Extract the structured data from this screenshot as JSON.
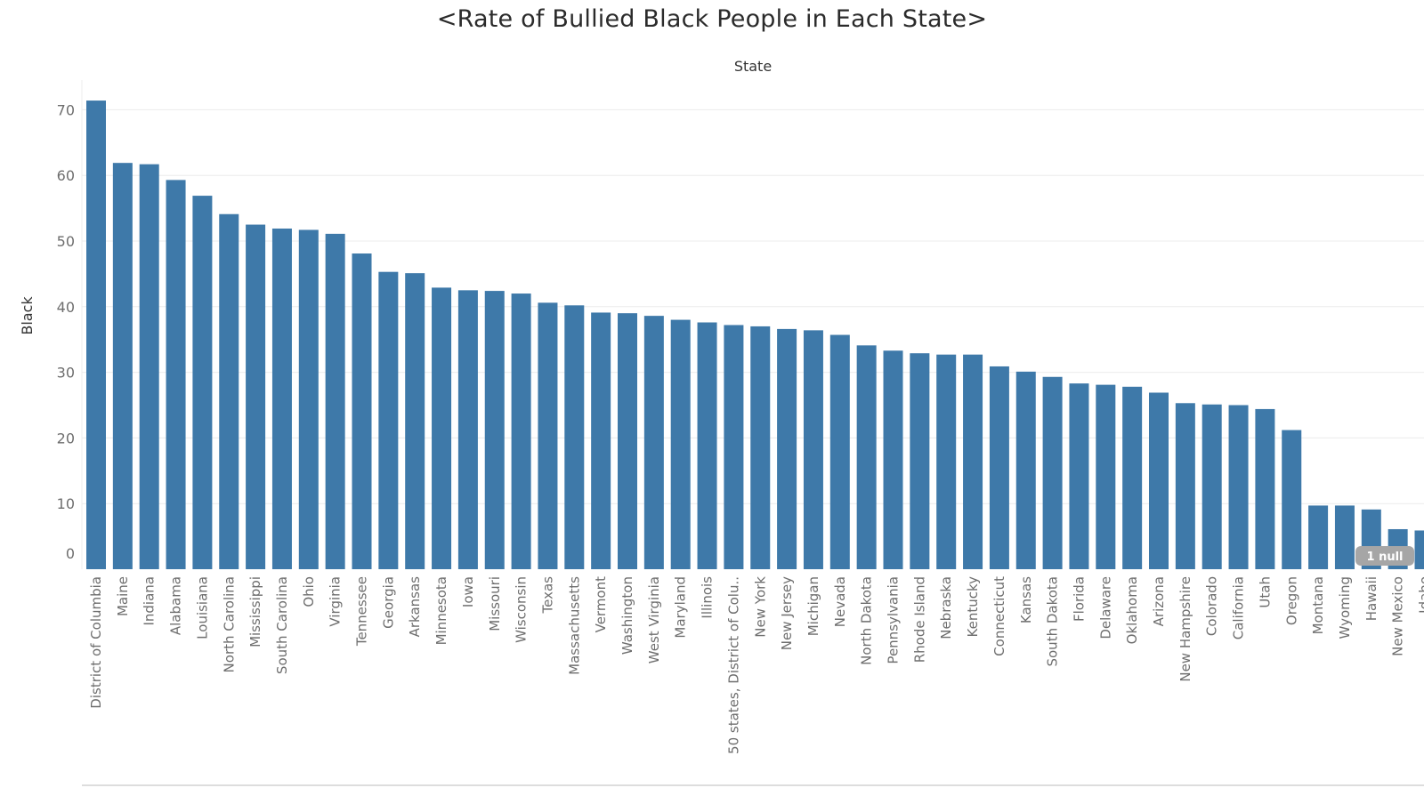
{
  "title": "<Rate of Bullied Black People in Each State>",
  "null_indicator": "1 null",
  "colors": {
    "bar": "#3e79a9",
    "grid": "#ececec",
    "axis": "#dddddd",
    "null_badge": "#a6a6a6"
  },
  "chart_data": {
    "type": "bar",
    "title": "<Rate of Bullied Black People in Each State>",
    "xlabel": "State",
    "ylabel": "Black",
    "ylim": [
      0,
      72
    ],
    "yticks": [
      0,
      10,
      20,
      30,
      40,
      50,
      60,
      70
    ],
    "grid": true,
    "categories": [
      "District of Columbia",
      "Maine",
      "Indiana",
      "Alabama",
      "Louisiana",
      "North Carolina",
      "Mississippi",
      "South Carolina",
      "Ohio",
      "Virginia",
      "Tennessee",
      "Georgia",
      "Arkansas",
      "Minnesota",
      "Iowa",
      "Missouri",
      "Wisconsin",
      "Texas",
      "Massachusetts",
      "Vermont",
      "Washington",
      "West Virginia",
      "Maryland",
      "Illinois",
      "50 states, District of Colu..",
      "New York",
      "New Jersey",
      "Michigan",
      "Nevada",
      "North Dakota",
      "Pennsylvania",
      "Rhode Island",
      "Nebraska",
      "Kentucky",
      "Connecticut",
      "Kansas",
      "South Dakota",
      "Florida",
      "Delaware",
      "Oklahoma",
      "Arizona",
      "New Hampshire",
      "Colorado",
      "California",
      "Utah",
      "Oregon",
      "Montana",
      "Wyoming",
      "Hawaii",
      "New Mexico",
      "Idaho"
    ],
    "values": [
      71.4,
      61.9,
      61.7,
      59.3,
      56.9,
      54.1,
      52.5,
      51.9,
      51.7,
      51.1,
      48.1,
      45.3,
      45.1,
      42.9,
      42.5,
      42.4,
      42.0,
      40.6,
      40.2,
      39.1,
      39.0,
      38.6,
      38.0,
      37.6,
      37.2,
      37.0,
      36.6,
      36.4,
      35.7,
      34.1,
      33.3,
      32.9,
      32.7,
      32.7,
      30.9,
      30.1,
      29.3,
      28.3,
      28.1,
      27.8,
      26.9,
      25.3,
      25.1,
      25.0,
      24.4,
      21.2,
      9.7,
      9.7,
      9.1,
      6.1,
      5.9
    ]
  }
}
